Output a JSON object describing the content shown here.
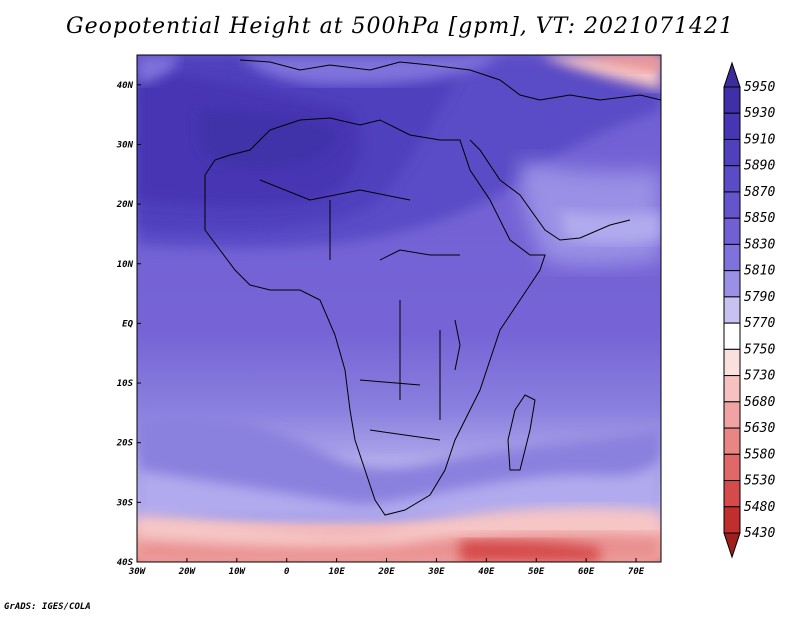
{
  "title": "Geopotential Height at 500hPa [gpm], VT: 2021071421",
  "credit": "GrADS: IGES/COLA",
  "map": {
    "region": "Africa",
    "field": "500 hPa geopotential height",
    "lon_range": [
      -30,
      75
    ],
    "lat_range": [
      -40,
      45
    ],
    "lon_ticks": [
      "30W",
      "20W",
      "10W",
      "0",
      "10E",
      "20E",
      "30E",
      "40E",
      "50E",
      "60E",
      "70E"
    ],
    "lat_ticks": [
      "40N",
      "30N",
      "20N",
      "10N",
      "EQ",
      "10S",
      "20S",
      "30S",
      "40S"
    ]
  },
  "colorbar": {
    "levels": [
      "5950",
      "5930",
      "5910",
      "5890",
      "5870",
      "5850",
      "5830",
      "5810",
      "5790",
      "5770",
      "5750",
      "5730",
      "5680",
      "5630",
      "5580",
      "5530",
      "5480",
      "5430"
    ],
    "colors": [
      "#3c2c9c",
      "#3f30a8",
      "#4736b3",
      "#5040bd",
      "#5a4bc6",
      "#6555cd",
      "#7060d4",
      "#7f72dc",
      "#9a90e5",
      "#c7c2f1",
      "#ffffff",
      "#fbe0e0",
      "#f6c1c1",
      "#efa3a3",
      "#e88585",
      "#e06868",
      "#d54b4b",
      "#c12e2e",
      "#a01e1e"
    ]
  }
}
